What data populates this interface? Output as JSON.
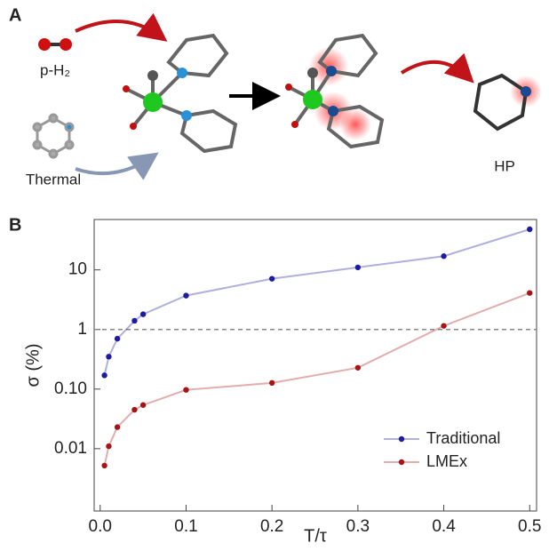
{
  "panel_labels": [
    "A",
    "B"
  ],
  "diagram": {
    "reagent_label": "p-H₂",
    "substrate_label": "Thermal",
    "product_label": "HP"
  },
  "chart_data": {
    "type": "line",
    "x_label": "T/τ",
    "y_label": "σ (%)",
    "log_y": true,
    "xlim": [
      -0.007,
      0.508
    ],
    "ylim": [
      0.0009,
      70
    ],
    "xticks": [
      {
        "value": 0,
        "label": "0.0"
      },
      0.1,
      0.2,
      0.3,
      0.4,
      0.5
    ],
    "yticks": [
      0.01,
      {
        "value": 0.1,
        "label": "0.10"
      },
      1,
      10
    ],
    "reference_line": 1,
    "legend": "lower right",
    "x": [
      0.005,
      0.01,
      0.02,
      0.04,
      0.05,
      0.1,
      0.2,
      0.3,
      0.4,
      0.5
    ],
    "series": [
      {
        "name": "Traditional",
        "color": "#1c1ca0",
        "values": [
          0.17,
          0.35,
          0.7,
          1.4,
          1.8,
          3.7,
          7.1,
          11,
          17,
          48
        ]
      },
      {
        "name": "LMEx",
        "color": "#a81414",
        "values": [
          0.0052,
          0.011,
          0.023,
          0.045,
          0.054,
          0.097,
          0.127,
          0.228,
          1.15,
          4.1
        ]
      }
    ]
  }
}
